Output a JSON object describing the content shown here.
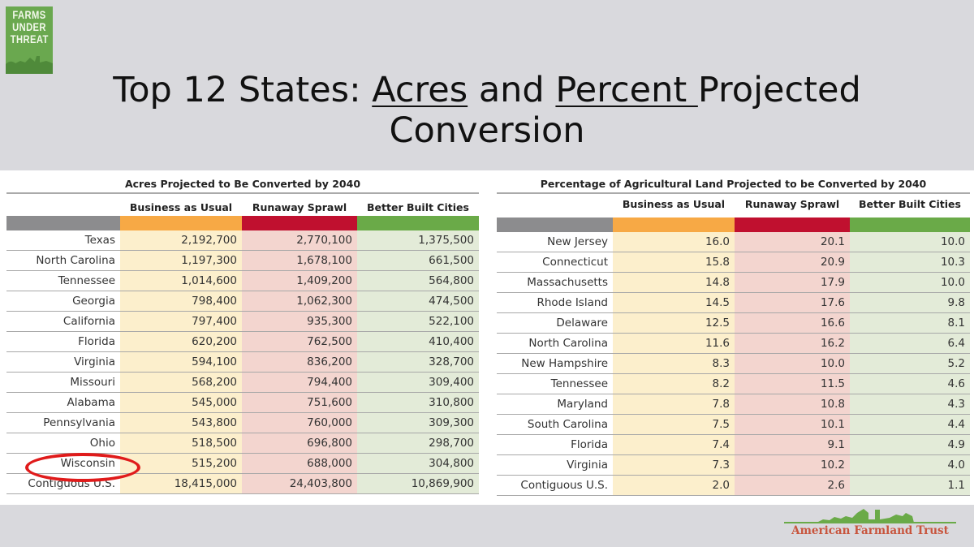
{
  "logo": {
    "text": "FARMS UNDER THREAT",
    "color": "#6aa84f"
  },
  "slide_title": {
    "part1": "Top 12 States:  ",
    "acres": "Acres",
    "part2": " and ",
    "percent": "Percent ",
    "part3": "Projected",
    "line2": "Conversion"
  },
  "colors": {
    "label_bar": "#8c8c8e",
    "business_as_usual": "#f7a945",
    "runaway_sprawl": "#c0102f",
    "better_built_cities": "#6aaa48",
    "bau_bg": "#fcefcc",
    "rs_bg": "#f3d5cf",
    "bbc_bg": "#e3ebd8"
  },
  "acres_table": {
    "title": "Acres Projected to Be Converted by 2040",
    "columns": [
      "Business as Usual",
      "Runaway Sprawl",
      "Better Built Cities"
    ],
    "rows": [
      [
        "Texas",
        "2,192,700",
        "2,770,100",
        "1,375,500"
      ],
      [
        "North Carolina",
        "1,197,300",
        "1,678,100",
        "661,500"
      ],
      [
        "Tennessee",
        "1,014,600",
        "1,409,200",
        "564,800"
      ],
      [
        "Georgia",
        "798,400",
        "1,062,300",
        "474,500"
      ],
      [
        "California",
        "797,400",
        "935,300",
        "522,100"
      ],
      [
        "Florida",
        "620,200",
        "762,500",
        "410,400"
      ],
      [
        "Virginia",
        "594,100",
        "836,200",
        "328,700"
      ],
      [
        "Missouri",
        "568,200",
        "794,400",
        "309,400"
      ],
      [
        "Alabama",
        "545,000",
        "751,600",
        "310,800"
      ],
      [
        "Pennsylvania",
        "543,800",
        "760,000",
        "309,300"
      ],
      [
        "Ohio",
        "518,500",
        "696,800",
        "298,700"
      ],
      [
        "Wisconsin",
        "515,200",
        "688,000",
        "304,800"
      ],
      [
        "Contiguous U.S.",
        "18,415,000",
        "24,403,800",
        "10,869,900"
      ]
    ],
    "highlighted_row": "Wisconsin"
  },
  "percent_table": {
    "title": "Percentage of Agricultural Land Projected to be Converted by 2040",
    "columns": [
      "Business as Usual",
      "Runaway Sprawl",
      "Better Built Cities"
    ],
    "rows": [
      [
        "New Jersey",
        "16.0",
        "20.1",
        "10.0"
      ],
      [
        "Connecticut",
        "15.8",
        "20.9",
        "10.3"
      ],
      [
        "Massachusetts",
        "14.8",
        "17.9",
        "10.0"
      ],
      [
        "Rhode Island",
        "14.5",
        "17.6",
        "9.8"
      ],
      [
        "Delaware",
        "12.5",
        "16.6",
        "8.1"
      ],
      [
        "North Carolina",
        "11.6",
        "16.2",
        "6.4"
      ],
      [
        "New Hampshire",
        "8.3",
        "10.0",
        "5.2"
      ],
      [
        "Tennessee",
        "8.2",
        "11.5",
        "4.6"
      ],
      [
        "Maryland",
        "7.8",
        "10.8",
        "4.3"
      ],
      [
        "South Carolina",
        "7.5",
        "10.1",
        "4.4"
      ],
      [
        "Florida",
        "7.4",
        "9.1",
        "4.9"
      ],
      [
        "Virginia",
        "7.3",
        "10.2",
        "4.0"
      ],
      [
        "Contiguous U.S.",
        "2.0",
        "2.6",
        "1.1"
      ]
    ]
  },
  "footer": {
    "org_name": "American Farmland Trust"
  }
}
